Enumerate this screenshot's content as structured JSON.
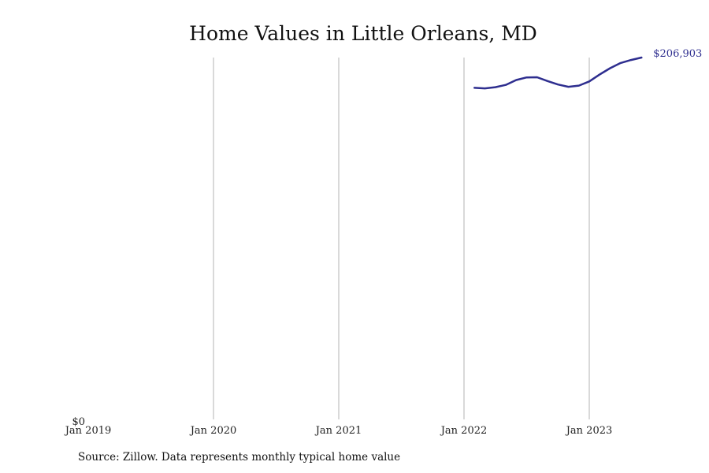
{
  "chart_data": {
    "type": "line",
    "title": "Home Values in Little Orleans, MD",
    "xlabel": "",
    "ylabel": "",
    "x_range": [
      "2019-01",
      "2023-07"
    ],
    "ylim": [
      0,
      206903
    ],
    "x_ticks": [
      "Jan 2019",
      "Jan 2020",
      "Jan 2021",
      "Jan 2022",
      "Jan 2023"
    ],
    "y_ticks": [
      "$0"
    ],
    "grid": "vertical",
    "line_color": "#2e2e8f",
    "series": [
      {
        "x": [
          "2022-02",
          "2022-03",
          "2022-04",
          "2022-05",
          "2022-06",
          "2022-07",
          "2022-08",
          "2022-09",
          "2022-10",
          "2022-11",
          "2022-12",
          "2023-01",
          "2023-02",
          "2023-03",
          "2023-04",
          "2023-05",
          "2023-06"
        ],
        "values": [
          189500,
          189200,
          189900,
          191200,
          194000,
          195500,
          195600,
          193400,
          191400,
          190100,
          190800,
          193200,
          197200,
          200800,
          203800,
          205500,
          206903
        ]
      }
    ],
    "end_label": "$206,903"
  },
  "source": "Source: Zillow. Data represents monthly typical home value"
}
